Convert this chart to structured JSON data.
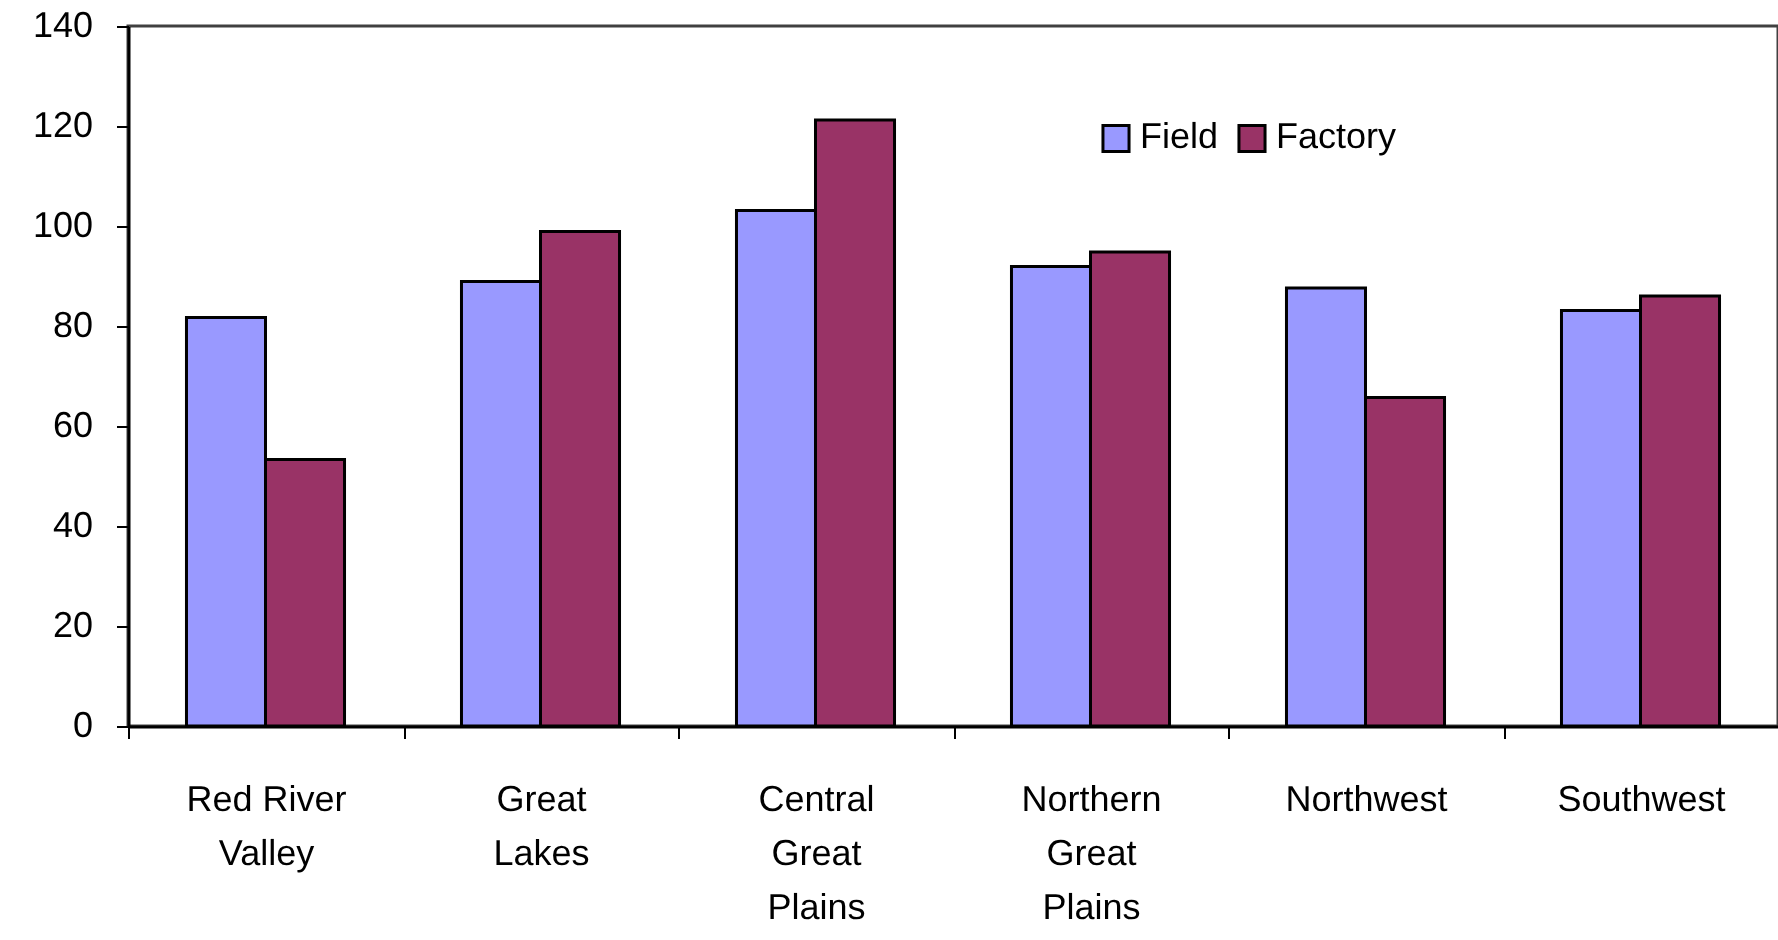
{
  "chart_data": {
    "type": "bar",
    "categories": [
      "Red River Valley",
      "Great Lakes",
      "Central Great Plains",
      "Northern Great Plains",
      "Northwest",
      "Southwest"
    ],
    "series": [
      {
        "name": "Field",
        "color": "#9999ff",
        "values": [
          81.7,
          88.9,
          103.1,
          91.9,
          87.6,
          83.1
        ]
      },
      {
        "name": "Factory",
        "color": "#993366",
        "values": [
          53.3,
          98.9,
          121.2,
          94.8,
          65.7,
          86.0
        ]
      }
    ],
    "ylim": [
      0,
      140
    ],
    "yticks": [
      0,
      20,
      40,
      60,
      80,
      100,
      120,
      140
    ],
    "legend": "top right"
  }
}
